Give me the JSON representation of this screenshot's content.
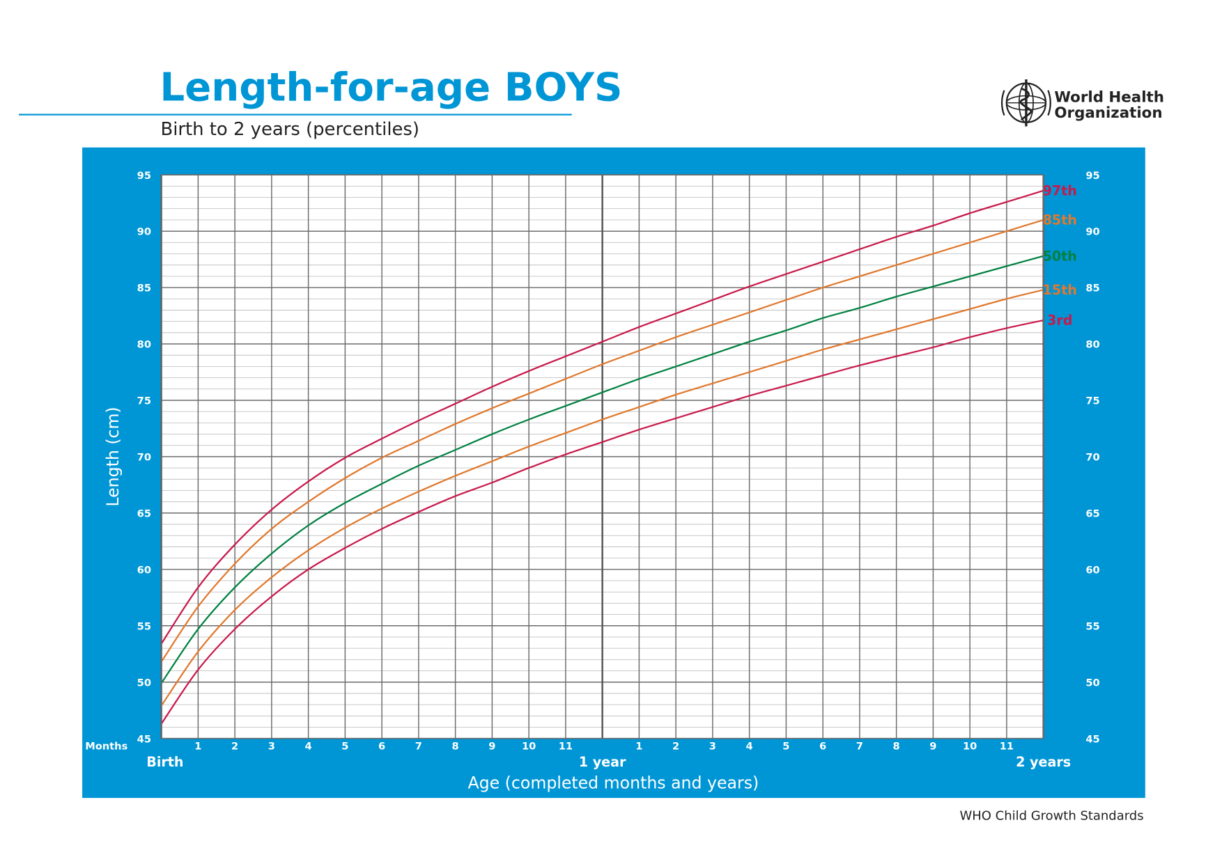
{
  "header": {
    "title": "Length-for-age BOYS",
    "subtitle": "Birth to 2 years (percentiles)",
    "org_line1": "World Health",
    "org_line2": "Organization",
    "logo_icon": "who-emblem-icon"
  },
  "footer": {
    "standards": "WHO Child Growth Standards"
  },
  "colors": {
    "title": "#0096d6",
    "panel": "#0096d6",
    "grid_major": "#6b6b6b",
    "grid_minor": "#b8b8b8",
    "p97": "#c8194b",
    "p85": "#e0782d",
    "p50": "#008140",
    "p15": "#e0782d",
    "p3": "#c8194b"
  },
  "chart_data": {
    "type": "line",
    "ylabel": "Length (cm)",
    "xlabel": "Age (completed months and years)",
    "xlim": [
      0,
      24
    ],
    "ylim": [
      45,
      95
    ],
    "y_ticks": [
      45,
      50,
      55,
      60,
      65,
      70,
      75,
      80,
      85,
      90,
      95
    ],
    "month_axis_label": "Months",
    "month_tick_labels": [
      "1",
      "2",
      "3",
      "4",
      "5",
      "6",
      "7",
      "8",
      "9",
      "10",
      "11",
      "",
      "1",
      "2",
      "3",
      "4",
      "5",
      "6",
      "7",
      "8",
      "9",
      "10",
      "11"
    ],
    "year_labels": [
      {
        "month": 0,
        "label": "Birth"
      },
      {
        "month": 12,
        "label": "1 year"
      },
      {
        "month": 24,
        "label": "2 years"
      }
    ],
    "x": [
      0,
      1,
      2,
      3,
      4,
      5,
      6,
      7,
      8,
      9,
      10,
      11,
      12,
      13,
      14,
      15,
      16,
      17,
      18,
      19,
      20,
      21,
      22,
      23,
      24
    ],
    "series": [
      {
        "name": "97th",
        "color": "#c8194b",
        "values": [
          53.4,
          58.4,
          62.2,
          65.3,
          67.8,
          69.9,
          71.6,
          73.2,
          74.7,
          76.2,
          77.6,
          78.9,
          80.2,
          81.5,
          82.7,
          83.9,
          85.1,
          86.2,
          87.3,
          88.4,
          89.5,
          90.5,
          91.6,
          92.6,
          93.6
        ]
      },
      {
        "name": "85th",
        "color": "#e0782d",
        "values": [
          51.8,
          56.7,
          60.5,
          63.6,
          66.0,
          68.1,
          69.9,
          71.4,
          72.9,
          74.3,
          75.6,
          76.9,
          78.2,
          79.4,
          80.6,
          81.7,
          82.8,
          83.9,
          85.0,
          86.0,
          87.0,
          88.0,
          89.0,
          90.0,
          91.0
        ]
      },
      {
        "name": "50th",
        "color": "#008140",
        "values": [
          49.9,
          54.7,
          58.4,
          61.4,
          63.9,
          65.9,
          67.6,
          69.2,
          70.6,
          72.0,
          73.3,
          74.5,
          75.7,
          76.9,
          78.0,
          79.1,
          80.2,
          81.2,
          82.3,
          83.2,
          84.2,
          85.1,
          86.0,
          86.9,
          87.8
        ]
      },
      {
        "name": "15th",
        "color": "#e0782d",
        "values": [
          47.9,
          52.7,
          56.4,
          59.3,
          61.7,
          63.7,
          65.4,
          66.9,
          68.3,
          69.6,
          70.9,
          72.1,
          73.3,
          74.4,
          75.5,
          76.5,
          77.5,
          78.5,
          79.5,
          80.4,
          81.3,
          82.2,
          83.1,
          84.0,
          84.8
        ]
      },
      {
        "name": "3rd",
        "color": "#c8194b",
        "values": [
          46.3,
          51.1,
          54.7,
          57.6,
          60.0,
          61.9,
          63.6,
          65.1,
          66.5,
          67.7,
          69.0,
          70.2,
          71.3,
          72.4,
          73.4,
          74.4,
          75.4,
          76.3,
          77.2,
          78.1,
          78.9,
          79.7,
          80.6,
          81.4,
          82.1
        ]
      }
    ]
  }
}
